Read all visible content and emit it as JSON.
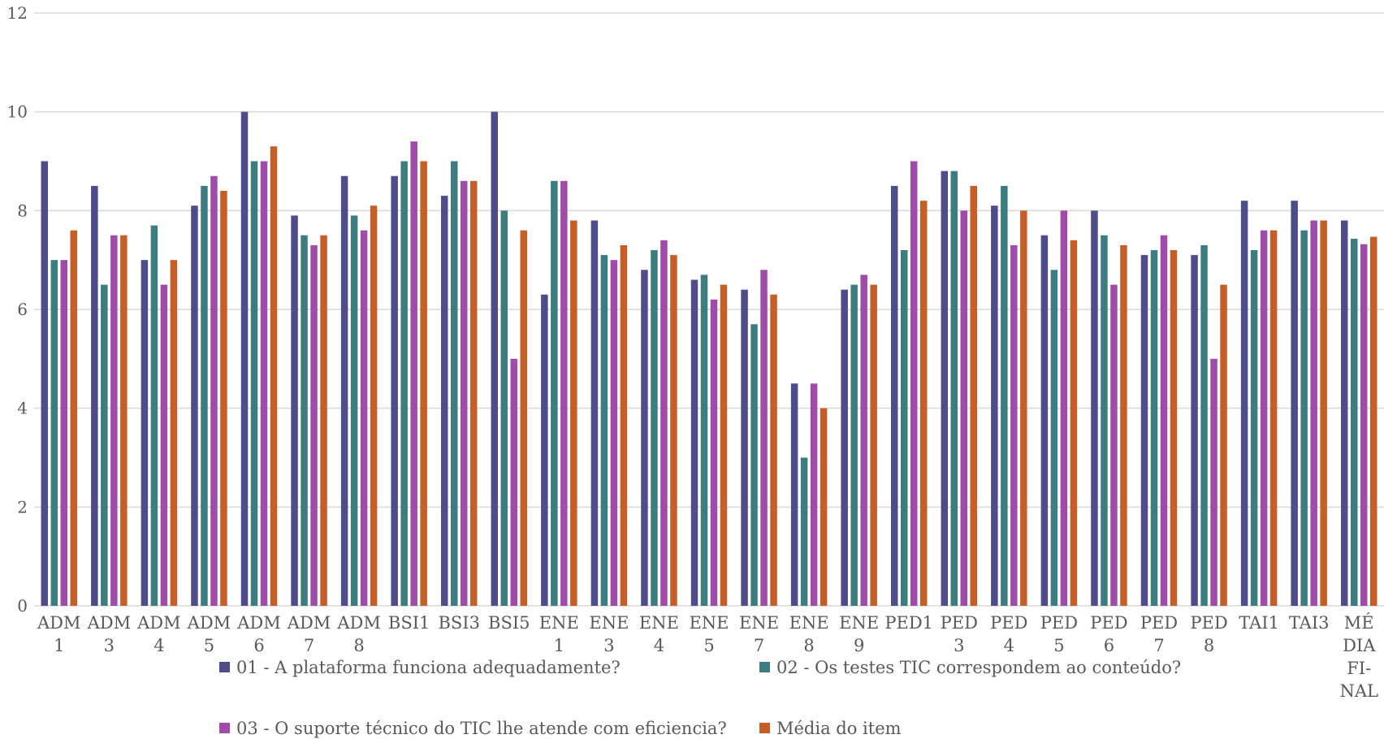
{
  "chart_data": {
    "type": "bar",
    "title": "",
    "xlabel": "",
    "ylabel": "",
    "ylim": [
      0,
      12
    ],
    "yticks": [
      0,
      2,
      4,
      6,
      8,
      10,
      12
    ],
    "grid": true,
    "legend_position": "bottom",
    "categories": [
      [
        "ADM",
        "1"
      ],
      [
        "ADM",
        "3"
      ],
      [
        "ADM",
        "4"
      ],
      [
        "ADM",
        "5"
      ],
      [
        "ADM",
        "6"
      ],
      [
        "ADM",
        "7"
      ],
      [
        "ADM",
        "8"
      ],
      [
        "BSI1"
      ],
      [
        "BSI3"
      ],
      [
        "BSI5"
      ],
      [
        "ENE",
        "1"
      ],
      [
        "ENE",
        "3"
      ],
      [
        "ENE",
        "4"
      ],
      [
        "ENE",
        "5"
      ],
      [
        "ENE",
        "7"
      ],
      [
        "ENE",
        "8"
      ],
      [
        "ENE",
        "9"
      ],
      [
        "PED1"
      ],
      [
        "PED",
        "3"
      ],
      [
        "PED",
        "4"
      ],
      [
        "PED",
        "5"
      ],
      [
        "PED",
        "6"
      ],
      [
        "PED",
        "7"
      ],
      [
        "PED",
        "8"
      ],
      [
        "TAI1"
      ],
      [
        "TAI3"
      ],
      [
        "MÉ",
        "DIA",
        "FI-",
        "NAL"
      ]
    ],
    "series": [
      {
        "name": "01 - A plataforma funciona adequadamente?",
        "color": "#4e4d8a",
        "values": [
          9.0,
          8.5,
          7.0,
          8.1,
          10.0,
          7.9,
          8.7,
          8.7,
          8.3,
          10.0,
          6.3,
          7.8,
          6.8,
          6.6,
          6.4,
          4.5,
          6.4,
          8.5,
          8.8,
          8.1,
          7.5,
          8.0,
          7.1,
          7.1,
          8.2,
          8.2,
          7.8
        ]
      },
      {
        "name": "02 - Os testes TIC correspondem ao conteúdo?",
        "color": "#3d7d80",
        "values": [
          7.0,
          6.5,
          7.7,
          8.5,
          9.0,
          7.5,
          7.9,
          9.0,
          9.0,
          8.0,
          8.6,
          7.1,
          7.2,
          6.7,
          5.7,
          3.0,
          6.5,
          7.2,
          8.8,
          8.5,
          6.8,
          7.5,
          7.2,
          7.3,
          7.2,
          7.6,
          7.43
        ]
      },
      {
        "name": "03 - O suporte técnico do TIC lhe atende com eficiencia?",
        "color": "#9e4ca8",
        "values": [
          7.0,
          7.5,
          6.5,
          8.7,
          9.0,
          7.3,
          7.6,
          9.4,
          8.6,
          5.0,
          8.6,
          7.0,
          7.4,
          6.2,
          6.8,
          4.5,
          6.7,
          9.0,
          8.0,
          7.3,
          8.0,
          6.5,
          7.5,
          5.0,
          7.6,
          7.8,
          7.32
        ]
      },
      {
        "name": "Média do item",
        "color": "#c65e28",
        "values": [
          7.6,
          7.5,
          7.0,
          8.4,
          9.3,
          7.5,
          8.1,
          9.0,
          8.6,
          7.6,
          7.8,
          7.3,
          7.1,
          6.5,
          6.3,
          4.0,
          6.5,
          8.2,
          8.5,
          8.0,
          7.4,
          7.3,
          7.2,
          6.5,
          7.6,
          7.8,
          7.47
        ]
      }
    ]
  }
}
